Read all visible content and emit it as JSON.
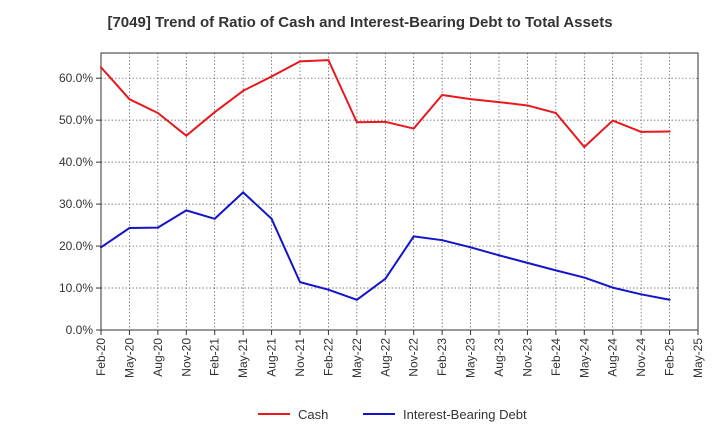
{
  "chart_data": {
    "type": "line",
    "title": "[7049]  Trend of Ratio of Cash and Interest-Bearing Debt to Total Assets",
    "xlabel": "",
    "ylabel": "",
    "ylim": [
      0,
      66
    ],
    "y_ticks": [
      0,
      10,
      20,
      30,
      40,
      50,
      60
    ],
    "y_tick_labels": [
      "0.0%",
      "10.0%",
      "20.0%",
      "30.0%",
      "40.0%",
      "50.0%",
      "60.0%"
    ],
    "grid": true,
    "legend_position": "bottom-center",
    "x_tick_labels": [
      "Feb-20",
      "May-20",
      "Aug-20",
      "Nov-20",
      "Feb-21",
      "May-21",
      "Aug-21",
      "Nov-21",
      "Feb-22",
      "May-22",
      "Aug-22",
      "Nov-22",
      "Feb-23",
      "May-23",
      "Aug-23",
      "Nov-23",
      "Feb-24",
      "May-24",
      "Aug-24",
      "Nov-24",
      "Feb-25",
      "May-25"
    ],
    "categories": [
      "Feb-20",
      "May-20",
      "Aug-20",
      "Nov-20",
      "Feb-21",
      "May-21",
      "Aug-21",
      "Nov-21",
      "Feb-22",
      "May-22",
      "Aug-22",
      "Nov-22",
      "Feb-23",
      "May-23",
      "Aug-23",
      "Nov-23",
      "Feb-24",
      "May-24",
      "Aug-24",
      "Nov-24",
      "Feb-25"
    ],
    "series": [
      {
        "name": "Cash",
        "color": "#e8191c",
        "values": [
          62.6,
          55.0,
          51.7,
          46.3,
          51.9,
          57.0,
          60.4,
          64.0,
          64.3,
          49.5,
          49.6,
          48.0,
          56.0,
          55.0,
          54.3,
          53.5,
          51.7,
          43.6,
          49.9,
          47.2,
          47.3
        ]
      },
      {
        "name": "Interest-Bearing Debt",
        "color": "#1414c8",
        "values": [
          19.7,
          24.3,
          24.4,
          28.5,
          26.5,
          32.8,
          26.5,
          11.4,
          9.6,
          7.2,
          12.2,
          22.3,
          21.4,
          19.7,
          17.8,
          16.0,
          14.2,
          12.5,
          10.1,
          8.5,
          7.2
        ]
      }
    ]
  }
}
